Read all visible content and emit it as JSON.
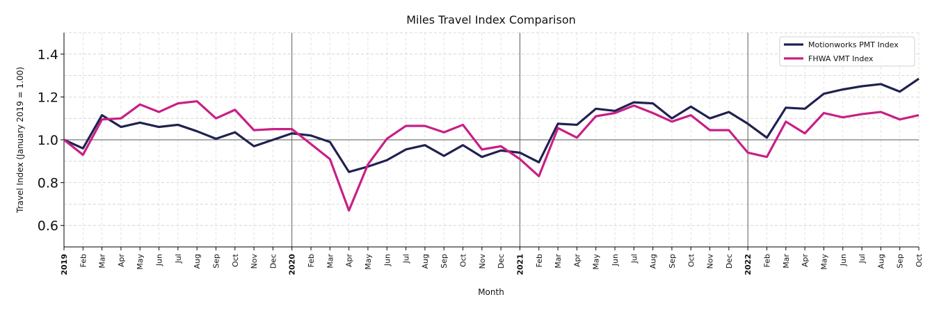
{
  "chart_data": {
    "type": "line",
    "title": "Miles Travel Index Comparison",
    "xlabel": "Month",
    "ylabel": "Travel Index (January 2019 = 1.00)",
    "categories": [
      "2019",
      "Feb",
      "Mar",
      "Apr",
      "May",
      "Jun",
      "Jul",
      "Aug",
      "Sep",
      "Oct",
      "Nov",
      "Dec",
      "2020",
      "Feb",
      "Mar",
      "Apr",
      "May",
      "Jun",
      "Jul",
      "Aug",
      "Sep",
      "Oct",
      "Nov",
      "Dec",
      "2021",
      "Feb",
      "Mar",
      "Apr",
      "May",
      "Jun",
      "Jul",
      "Aug",
      "Sep",
      "Oct",
      "Nov",
      "Dec",
      "2022",
      "Feb",
      "Mar",
      "Apr",
      "May",
      "Jun",
      "Jul",
      "Aug",
      "Sep",
      "Oct"
    ],
    "series": [
      {
        "name": "Motionworks PMT Index",
        "color": "#1f2150",
        "values": [
          1.0,
          0.96,
          1.115,
          1.06,
          1.08,
          1.06,
          1.07,
          1.04,
          1.005,
          1.035,
          0.97,
          1.0,
          1.03,
          1.02,
          0.99,
          0.85,
          0.875,
          0.905,
          0.955,
          0.975,
          0.925,
          0.975,
          0.92,
          0.95,
          0.94,
          0.895,
          1.075,
          1.07,
          1.145,
          1.135,
          1.175,
          1.17,
          1.1,
          1.155,
          1.1,
          1.13,
          1.075,
          1.01,
          1.15,
          1.145,
          1.215,
          1.235,
          1.25,
          1.26,
          1.225,
          1.285
        ]
      },
      {
        "name": "FHWA VMT Index",
        "color": "#c81f86",
        "values": [
          1.0,
          0.93,
          1.095,
          1.1,
          1.165,
          1.13,
          1.17,
          1.18,
          1.1,
          1.14,
          1.045,
          1.05,
          1.05,
          0.98,
          0.91,
          0.67,
          0.885,
          1.005,
          1.065,
          1.065,
          1.035,
          1.07,
          0.955,
          0.97,
          0.91,
          0.83,
          1.055,
          1.01,
          1.11,
          1.125,
          1.16,
          1.125,
          1.085,
          1.115,
          1.045,
          1.045,
          0.94,
          0.92,
          1.085,
          1.03,
          1.125,
          1.105,
          1.12,
          1.13,
          1.095,
          1.115
        ]
      }
    ],
    "ylim": [
      0.5,
      1.5
    ],
    "yticks": [
      0.6,
      0.8,
      {
        "value": 1,
        "label": "1.0"
      },
      1.2,
      1.4
    ],
    "y_minor_ticks": [
      0.5,
      0.7,
      0.9,
      1.1,
      1.3,
      1.5
    ],
    "reference_line": 1,
    "grid": true,
    "legend": "upper right"
  }
}
